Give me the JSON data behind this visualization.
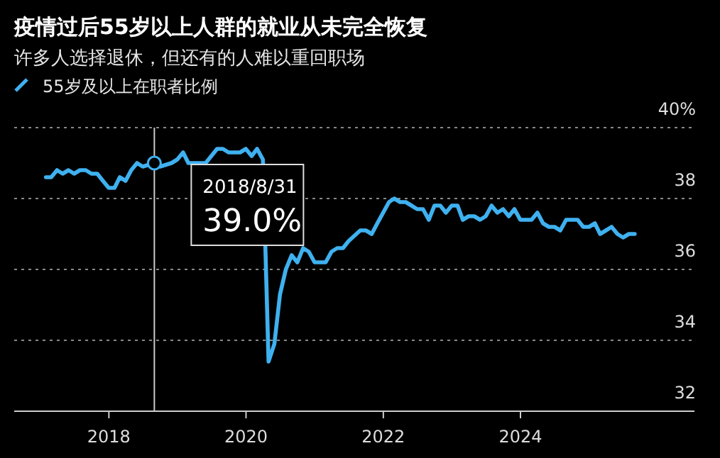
{
  "chart_data": {
    "type": "line",
    "title": "疫情过后55岁以上人群的就业从未完全恢复",
    "subtitle": "许多人选择退休，但还有的人难以重回职场",
    "legend": "top left",
    "grid": "y",
    "line_style": "solid",
    "xlim": [
      "2016-08-15",
      "2026-07-15"
    ],
    "xticks": [
      "2018",
      "2020",
      "2022",
      "2024"
    ],
    "ylim": [
      32,
      40
    ],
    "yticks": [
      32,
      34,
      36,
      38,
      {
        "value": 40,
        "label": "40%"
      }
    ],
    "ref_lines": [
      {
        "axis": "x",
        "value": "2018-08-31",
        "color": "#cccccc"
      }
    ],
    "annotations": [
      {
        "text": "2018/8/31",
        "x": "2018-08-31",
        "y": 39.0
      },
      {
        "text": "39.0%",
        "x": "2018-08-31",
        "y": 39.0
      }
    ],
    "series": [
      {
        "name": "55岁及以上在职者比例",
        "color": "#3fb1f0",
        "x": [
          "2017-01-31",
          "2017-02-28",
          "2017-03-31",
          "2017-04-30",
          "2017-05-31",
          "2017-06-30",
          "2017-07-31",
          "2017-08-31",
          "2017-09-30",
          "2017-10-31",
          "2017-11-30",
          "2017-12-31",
          "2018-01-31",
          "2018-02-28",
          "2018-03-31",
          "2018-04-30",
          "2018-05-31",
          "2018-06-30",
          "2018-08-31",
          "2018-09-30",
          "2018-11-30",
          "2018-12-31",
          "2019-01-31",
          "2019-02-28",
          "2019-04-30",
          "2019-05-31",
          "2019-07-31",
          "2019-08-31",
          "2019-09-30",
          "2019-11-30",
          "2019-12-31",
          "2020-01-31",
          "2020-02-29",
          "2020-03-31",
          "2020-04-30",
          "2020-05-31",
          "2020-06-30",
          "2020-07-31",
          "2020-08-31",
          "2020-09-30",
          "2020-10-31",
          "2020-11-30",
          "2020-12-31",
          "2021-01-31",
          "2021-02-28",
          "2021-03-31",
          "2021-04-30",
          "2021-05-31",
          "2021-06-30",
          "2021-08-31",
          "2021-09-30",
          "2021-10-31",
          "2021-11-30",
          "2022-01-31",
          "2022-02-28",
          "2022-03-31",
          "2022-04-30",
          "2022-05-31",
          "2022-06-30",
          "2022-07-31",
          "2022-08-31",
          "2022-09-30",
          "2022-10-31",
          "2022-11-30",
          "2022-12-31",
          "2023-01-31",
          "2023-02-28",
          "2023-03-31",
          "2023-04-30",
          "2023-05-31",
          "2023-06-30",
          "2023-07-31",
          "2023-08-31",
          "2023-09-30",
          "2023-10-31",
          "2023-11-30",
          "2023-12-31",
          "2024-01-31",
          "2024-02-29",
          "2024-03-31",
          "2024-04-30",
          "2024-05-31",
          "2024-06-30",
          "2024-07-31",
          "2024-08-31",
          "2024-09-30",
          "2024-10-31",
          "2024-11-30",
          "2024-12-31",
          "2025-01-31",
          "2025-02-28",
          "2025-03-31",
          "2025-04-30",
          "2025-05-31",
          "2025-06-30",
          "2025-07-31",
          "2025-08-31"
        ],
        "values": [
          38.6,
          38.6,
          38.8,
          38.7,
          38.8,
          38.7,
          38.8,
          38.8,
          38.7,
          38.7,
          38.5,
          38.3,
          38.3,
          38.6,
          38.5,
          38.8,
          39.0,
          38.9,
          39.0,
          38.9,
          39.0,
          39.1,
          39.3,
          39.0,
          39.0,
          39.0,
          39.4,
          39.4,
          39.3,
          39.3,
          39.4,
          39.2,
          39.4,
          39.1,
          33.4,
          33.9,
          35.3,
          36.0,
          36.4,
          36.2,
          36.6,
          36.5,
          36.2,
          36.2,
          36.2,
          36.5,
          36.6,
          36.6,
          36.8,
          37.1,
          37.1,
          37.0,
          37.3,
          37.9,
          38.0,
          37.9,
          37.9,
          37.8,
          37.7,
          37.7,
          37.4,
          37.8,
          37.8,
          37.6,
          37.8,
          37.8,
          37.4,
          37.5,
          37.5,
          37.4,
          37.5,
          37.8,
          37.6,
          37.7,
          37.5,
          37.7,
          37.4,
          37.4,
          37.4,
          37.6,
          37.3,
          37.2,
          37.2,
          37.1,
          37.4,
          37.4,
          37.4,
          37.2,
          37.2,
          37.3,
          37.0,
          37.1,
          37.2,
          37.0,
          36.9,
          37.0,
          37.0
        ]
      }
    ]
  }
}
